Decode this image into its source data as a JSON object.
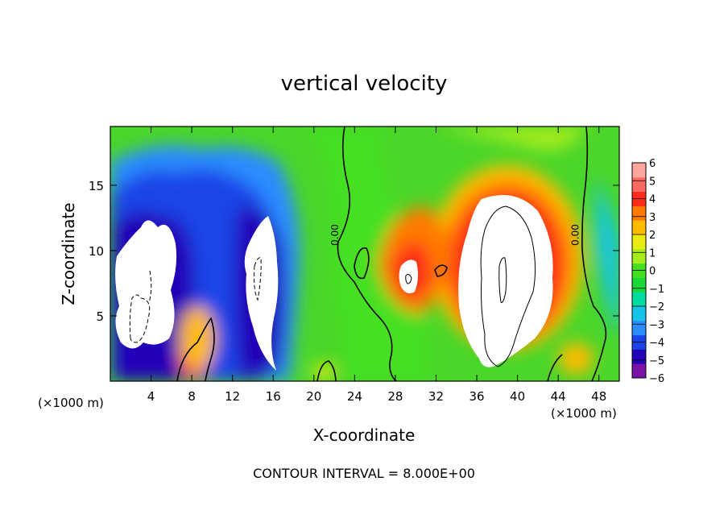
{
  "chart_data": {
    "type": "heatmap",
    "title": "vertical velocity",
    "xlabel": "X-coordinate",
    "ylabel": "Z-coordinate",
    "x_unit": "(×1000 m)",
    "x_unit_bottom_right": "(×1000 m)",
    "footer": "CONTOUR INTERVAL = 8.000E+00",
    "xlim": [
      0,
      50
    ],
    "ylim": [
      0,
      19.5
    ],
    "x_ticks": [
      4,
      8,
      12,
      16,
      20,
      24,
      28,
      32,
      36,
      40,
      44,
      48
    ],
    "y_ticks": [
      5,
      10,
      15
    ],
    "colorbar": {
      "min": -6,
      "max": 6,
      "ticks": [
        6,
        5,
        4,
        3,
        2,
        1,
        0,
        -1,
        -2,
        -3,
        -4,
        -5,
        -6
      ],
      "tick_labels": [
        "6",
        "5",
        "4",
        "3",
        "2",
        "1",
        "0",
        "−1",
        "−2",
        "−3",
        "−4",
        "−5",
        "−6"
      ],
      "colors": [
        "#7a12a6",
        "#2200b8",
        "#1a44e8",
        "#2a8cff",
        "#16c4e8",
        "#00dca0",
        "#1ad838",
        "#44e020",
        "#a6ec1a",
        "#e8ec10",
        "#ffbb00",
        "#ff7a00",
        "#ff2a18",
        "#ff6a60",
        "#ffa6a0"
      ]
    },
    "contour_labels": [
      {
        "text": "0.00",
        "x": 22.4,
        "y": 11.2
      },
      {
        "text": "0.00",
        "x": 46.0,
        "y": 11.2
      }
    ],
    "anomalies": [
      {
        "x": 3.2,
        "z": 8.5,
        "value": -12
      },
      {
        "x": 15.0,
        "z": 9.0,
        "value": -10
      },
      {
        "x": 11.5,
        "z": 15.0,
        "value": -4.5
      },
      {
        "x": 8.7,
        "z": 2.0,
        "value": 6.5
      },
      {
        "x": 29.5,
        "z": 8.5,
        "value": 9
      },
      {
        "x": 38.5,
        "z": 8.0,
        "value": 16
      },
      {
        "x": 31.5,
        "z": 12.5,
        "value": 3.5
      },
      {
        "x": 45.5,
        "z": 2.0,
        "value": 3
      },
      {
        "x": 21.5,
        "z": 1.0,
        "value": 2
      },
      {
        "x": 49.5,
        "z": 10.0,
        "value": -3.5
      },
      {
        "x": 5.0,
        "z": 17.0,
        "value": -2.5
      }
    ]
  }
}
